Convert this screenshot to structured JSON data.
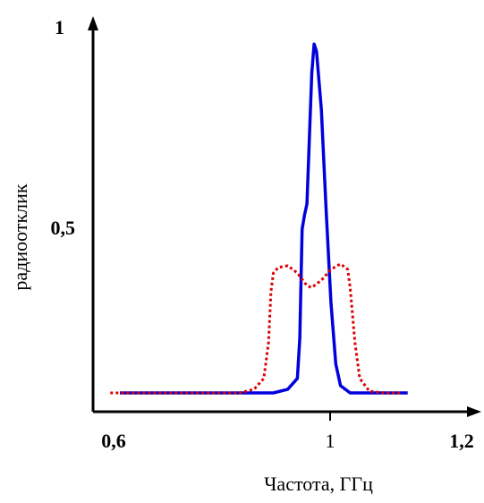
{
  "chart_data": {
    "type": "line",
    "xlabel": "Частота, ГГц",
    "ylabel": "радиоотклик",
    "xlim": [
      0.6,
      1.2
    ],
    "ylim": [
      0,
      1
    ],
    "x_ticks": [
      {
        "value": 0.6,
        "label": "0,6",
        "bold": true
      },
      {
        "value": 1.0,
        "label": "1",
        "bold": false
      },
      {
        "value": 1.2,
        "label": "1,2",
        "bold": true
      }
    ],
    "y_ticks": [
      {
        "value": 0.5,
        "label": "0,5",
        "bold": true
      },
      {
        "value": 1.0,
        "label": "1",
        "bold": true
      }
    ],
    "grid": false,
    "series": [
      {
        "style": "solid",
        "color": "#0000dd",
        "points": [
          [
            0.6,
            0.0
          ],
          [
            0.8,
            0.0
          ],
          [
            0.92,
            0.0
          ],
          [
            0.95,
            0.01
          ],
          [
            0.97,
            0.04
          ],
          [
            0.975,
            0.15
          ],
          [
            0.98,
            0.45
          ],
          [
            0.985,
            0.49
          ],
          [
            0.99,
            0.52
          ],
          [
            0.995,
            0.7
          ],
          [
            1.0,
            0.88
          ],
          [
            1.005,
            0.96
          ],
          [
            1.01,
            0.94
          ],
          [
            1.02,
            0.78
          ],
          [
            1.03,
            0.5
          ],
          [
            1.04,
            0.25
          ],
          [
            1.05,
            0.08
          ],
          [
            1.06,
            0.02
          ],
          [
            1.08,
            0.0
          ],
          [
            1.2,
            0.0
          ]
        ]
      },
      {
        "style": "dotted",
        "color": "#dd0000",
        "points": [
          [
            0.58,
            0.0
          ],
          [
            0.85,
            0.0
          ],
          [
            0.88,
            0.01
          ],
          [
            0.9,
            0.04
          ],
          [
            0.91,
            0.14
          ],
          [
            0.915,
            0.28
          ],
          [
            0.92,
            0.33
          ],
          [
            0.93,
            0.345
          ],
          [
            0.95,
            0.35
          ],
          [
            0.97,
            0.33
          ],
          [
            0.99,
            0.295
          ],
          [
            1.0,
            0.29
          ],
          [
            1.02,
            0.31
          ],
          [
            1.04,
            0.34
          ],
          [
            1.06,
            0.355
          ],
          [
            1.075,
            0.34
          ],
          [
            1.08,
            0.29
          ],
          [
            1.09,
            0.14
          ],
          [
            1.1,
            0.04
          ],
          [
            1.12,
            0.005
          ],
          [
            1.15,
            0.0
          ],
          [
            1.19,
            0.0
          ]
        ]
      }
    ]
  }
}
